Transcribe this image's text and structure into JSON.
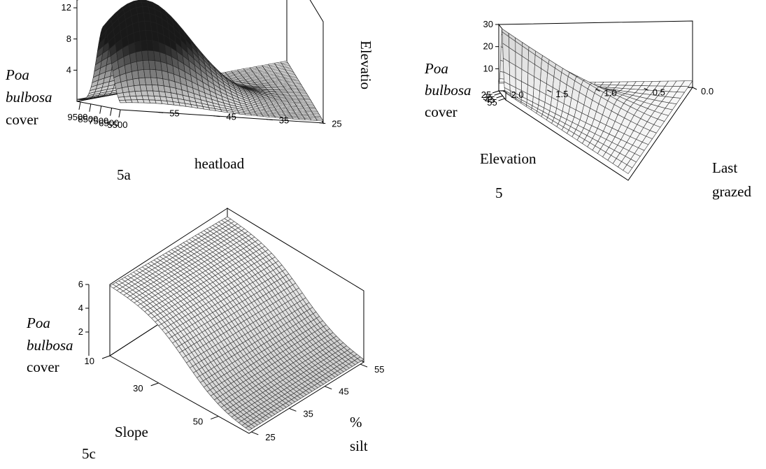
{
  "chart_data": [
    {
      "type": "surface3d",
      "panel": "5a",
      "zlabel": [
        "Poa",
        "bulbosa",
        "cover"
      ],
      "xlabel": "heatload",
      "ylabel": "Elevatio",
      "x_ticks": [
        "9500",
        "8500",
        "7500",
        "6500",
        "5500"
      ],
      "y_ticks": [
        "25",
        "35",
        "45",
        "55"
      ],
      "z_ticks": [
        "12",
        "8",
        "4"
      ],
      "xlim": [
        5500,
        10000
      ],
      "ylim": [
        25,
        60
      ],
      "zlim": [
        0,
        13
      ],
      "surface": {
        "shape": "single peak",
        "peak_value": 13.5,
        "peak_heatload": 8000,
        "peak_elevation": 30
      }
    },
    {
      "type": "surface3d",
      "panel": "5",
      "zlabel": [
        "Poa",
        "bulbosa",
        "cover"
      ],
      "xlabel": "Elevation",
      "ylabel": [
        "Last",
        "grazed"
      ],
      "x_ticks": [
        "25",
        "35",
        "45",
        "55"
      ],
      "y_ticks": [
        "0.0",
        "0.5",
        "1.0",
        "1.5",
        "2.0"
      ],
      "z_ticks": [
        "30",
        "20",
        "10"
      ],
      "xlim": [
        25,
        60
      ],
      "ylim": [
        0,
        2
      ],
      "zlim": [
        0,
        30
      ],
      "surface": {
        "shape": "ridge",
        "peak_value": 29,
        "peak_elevation": 45,
        "peak_last_grazed": 2.0
      }
    },
    {
      "type": "surface3d",
      "panel": "5c",
      "zlabel": [
        "Poa",
        "bulbosa",
        "cover"
      ],
      "xlabel": "Slope",
      "ylabel": [
        "%",
        "silt"
      ],
      "x_ticks": [
        "10",
        "30",
        "50"
      ],
      "y_ticks": [
        "55",
        "45",
        "35",
        "25"
      ],
      "z_ticks": [
        "6",
        "4",
        "2"
      ],
      "xlim": [
        10,
        60
      ],
      "ylim": [
        25,
        55
      ],
      "zlim": [
        0,
        6
      ],
      "surface": {
        "shape": "sigmoid decline with slope",
        "max_value": 6,
        "min_value": 0
      }
    }
  ]
}
